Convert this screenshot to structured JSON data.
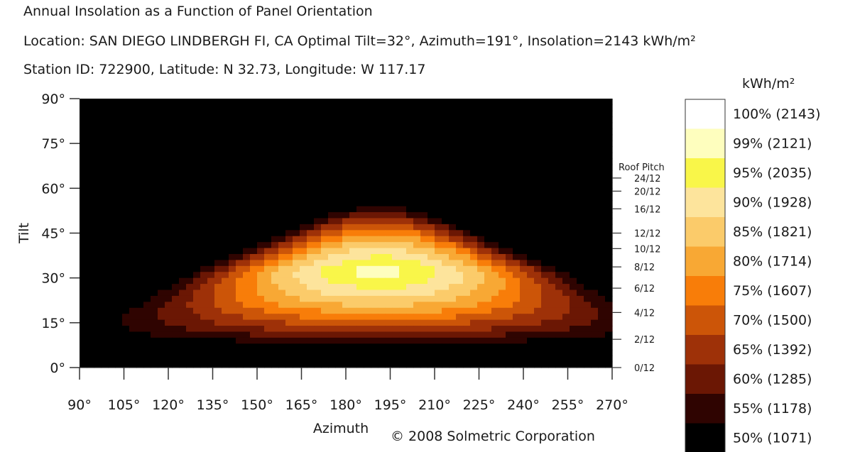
{
  "header": {
    "title": "Annual Insolation as a Function of Panel Orientation",
    "location": "Location: SAN DIEGO LINDBERGH FI, CA   Optimal Tilt=32°, Azimuth=191°, Insolation=2143 kWh/m²",
    "station": "Station ID: 722900, Latitude: N 32.73, Longitude: W 117.17"
  },
  "footer": {
    "copyright": "© 2008 Solmetric Corporation"
  },
  "chart_data": {
    "type": "heatmap",
    "title": "Annual Insolation as a Function of Panel Orientation",
    "xlabel": "Azimuth",
    "ylabel": "Tilt",
    "xlim": [
      90,
      270
    ],
    "ylim": [
      0,
      90
    ],
    "x_ticks": [
      90,
      105,
      120,
      135,
      150,
      165,
      180,
      195,
      210,
      225,
      240,
      255,
      270
    ],
    "x_tick_labels": [
      "90°",
      "105°",
      "120°",
      "135°",
      "150°",
      "165°",
      "180°",
      "195°",
      "210°",
      "225°",
      "240°",
      "255°",
      "270°"
    ],
    "y_ticks": [
      0,
      15,
      30,
      45,
      60,
      75,
      90
    ],
    "y_tick_labels": [
      "0°",
      "15°",
      "30°",
      "45°",
      "60°",
      "75°",
      "90°"
    ],
    "secondary_axis": {
      "label": "Roof Pitch",
      "ticks": [
        {
          "label": "0/12",
          "tilt": 0.0
        },
        {
          "label": "2/12",
          "tilt": 9.46
        },
        {
          "label": "4/12",
          "tilt": 18.43
        },
        {
          "label": "6/12",
          "tilt": 26.57
        },
        {
          "label": "8/12",
          "tilt": 33.69
        },
        {
          "label": "10/12",
          "tilt": 39.81
        },
        {
          "label": "12/12",
          "tilt": 45.0
        },
        {
          "label": "16/12",
          "tilt": 53.13
        },
        {
          "label": "20/12",
          "tilt": 59.04
        },
        {
          "label": "24/12",
          "tilt": 63.43
        }
      ]
    },
    "optimum": {
      "tilt": 32,
      "azimuth": 191,
      "insolation": 2143
    },
    "color_scale": {
      "unit": "kWh/m²",
      "levels": [
        {
          "label": "100% (2143)",
          "percent": 100,
          "value": 2143,
          "color": "#ffffff"
        },
        {
          "label": "99% (2121)",
          "percent": 99,
          "value": 2121,
          "color": "#fefebe"
        },
        {
          "label": "95% (2035)",
          "percent": 95,
          "value": 2035,
          "color": "#f9f649"
        },
        {
          "label": "90% (1928)",
          "percent": 90,
          "value": 1928,
          "color": "#fde49c"
        },
        {
          "label": "85% (1821)",
          "percent": 85,
          "value": 1821,
          "color": "#fbcb6a"
        },
        {
          "label": "80% (1714)",
          "percent": 80,
          "value": 1714,
          "color": "#f8a834"
        },
        {
          "label": "75% (1607)",
          "percent": 75,
          "value": 1607,
          "color": "#f87d09"
        },
        {
          "label": "70% (1500)",
          "percent": 70,
          "value": 1500,
          "color": "#cc5508"
        },
        {
          "label": "65% (1392)",
          "percent": 65,
          "value": 1392,
          "color": "#9e3108"
        },
        {
          "label": "60% (1285)",
          "percent": 60,
          "value": 1285,
          "color": "#6b1704"
        },
        {
          "label": "55% (1178)",
          "percent": 55,
          "value": 1178,
          "color": "#2f0401"
        },
        {
          "label": "50% (1071)",
          "percent": 50,
          "value": 1071,
          "color": "#000000"
        }
      ]
    }
  }
}
